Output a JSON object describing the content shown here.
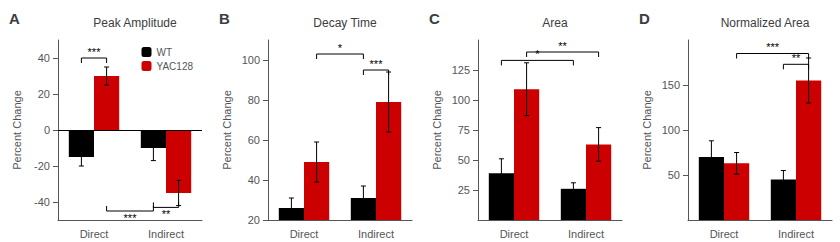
{
  "chart_data": [
    {
      "type": "bar",
      "label": "A",
      "title": "Peak Amplitude",
      "ylabel": "Percent Change",
      "categories": [
        "Direct",
        "Indirect"
      ],
      "series": [
        {
          "name": "WT",
          "color": "#000000",
          "values": [
            -15,
            -10
          ],
          "errors": [
            5,
            7
          ]
        },
        {
          "name": "YAC128",
          "color": "#cc0000",
          "values": [
            30,
            -35
          ],
          "errors": [
            5,
            7
          ]
        }
      ],
      "ylim": [
        -50,
        50
      ],
      "yticks": [
        -40,
        -20,
        0,
        20,
        40
      ],
      "grid": false,
      "legend": "upper right",
      "annotations": [
        {
          "text": "***",
          "from": [
            "Direct",
            "WT"
          ],
          "to": [
            "Direct",
            "YAC128"
          ],
          "y": 40
        },
        {
          "text": "***",
          "from": [
            "Direct",
            "YAC128"
          ],
          "to": [
            "Indirect",
            "WT"
          ],
          "y": -45
        },
        {
          "text": "**",
          "from": [
            "Indirect",
            "WT"
          ],
          "to": [
            "Indirect",
            "YAC128"
          ],
          "y": -43
        }
      ]
    },
    {
      "type": "bar",
      "label": "B",
      "title": "Decay Time",
      "ylabel": "Percent Change",
      "categories": [
        "Direct",
        "Indirect"
      ],
      "series": [
        {
          "name": "WT",
          "color": "#000000",
          "values": [
            26,
            31
          ],
          "errors": [
            5,
            6
          ]
        },
        {
          "name": "YAC128",
          "color": "#cc0000",
          "values": [
            49,
            79
          ],
          "errors": [
            10,
            15
          ]
        }
      ],
      "ylim": [
        20,
        110
      ],
      "yticks": [
        20,
        40,
        60,
        80,
        100
      ],
      "grid": false,
      "annotations": [
        {
          "text": "*",
          "from": [
            "Direct",
            "YAC128"
          ],
          "to": [
            "Indirect",
            "WT"
          ],
          "y": 103
        },
        {
          "text": "***",
          "from": [
            "Indirect",
            "WT"
          ],
          "to": [
            "Indirect",
            "YAC128"
          ],
          "y": 95
        }
      ]
    },
    {
      "type": "bar",
      "label": "C",
      "title": "Area",
      "ylabel": "Percent Change",
      "categories": [
        "Direct",
        "Indirect"
      ],
      "series": [
        {
          "name": "WT",
          "color": "#000000",
          "values": [
            39,
            26
          ],
          "errors": [
            12,
            5
          ]
        },
        {
          "name": "YAC128",
          "color": "#cc0000",
          "values": [
            109,
            63
          ],
          "errors": [
            22,
            14
          ]
        }
      ],
      "ylim": [
        0,
        150
      ],
      "yticks": [
        25,
        50,
        75,
        100,
        125
      ],
      "grid": false,
      "annotations": [
        {
          "text": "**",
          "from": [
            "Direct",
            "YAC128"
          ],
          "to": [
            "Indirect",
            "YAC128"
          ],
          "y": 140
        },
        {
          "text": "*",
          "from": [
            "Direct",
            "WT"
          ],
          "to": [
            "Indirect",
            "WT"
          ],
          "y": 133
        }
      ]
    },
    {
      "type": "bar",
      "label": "D",
      "title": "Normalized Area",
      "ylabel": "Percent Change",
      "categories": [
        "Direct",
        "Indirect"
      ],
      "series": [
        {
          "name": "WT",
          "color": "#000000",
          "values": [
            70,
            45
          ],
          "errors": [
            18,
            10
          ]
        },
        {
          "name": "YAC128",
          "color": "#cc0000",
          "values": [
            63,
            155
          ],
          "errors": [
            12,
            25
          ]
        }
      ],
      "ylim": [
        0,
        200
      ],
      "yticks": [
        50,
        100,
        150
      ],
      "grid": false,
      "annotations": [
        {
          "text": "***",
          "from": [
            "Direct",
            "YAC128"
          ],
          "to": [
            "Indirect",
            "YAC128"
          ],
          "y": 185
        },
        {
          "text": "**",
          "from": [
            "Indirect",
            "WT"
          ],
          "to": [
            "Indirect",
            "YAC128"
          ],
          "y": 173
        }
      ]
    }
  ]
}
